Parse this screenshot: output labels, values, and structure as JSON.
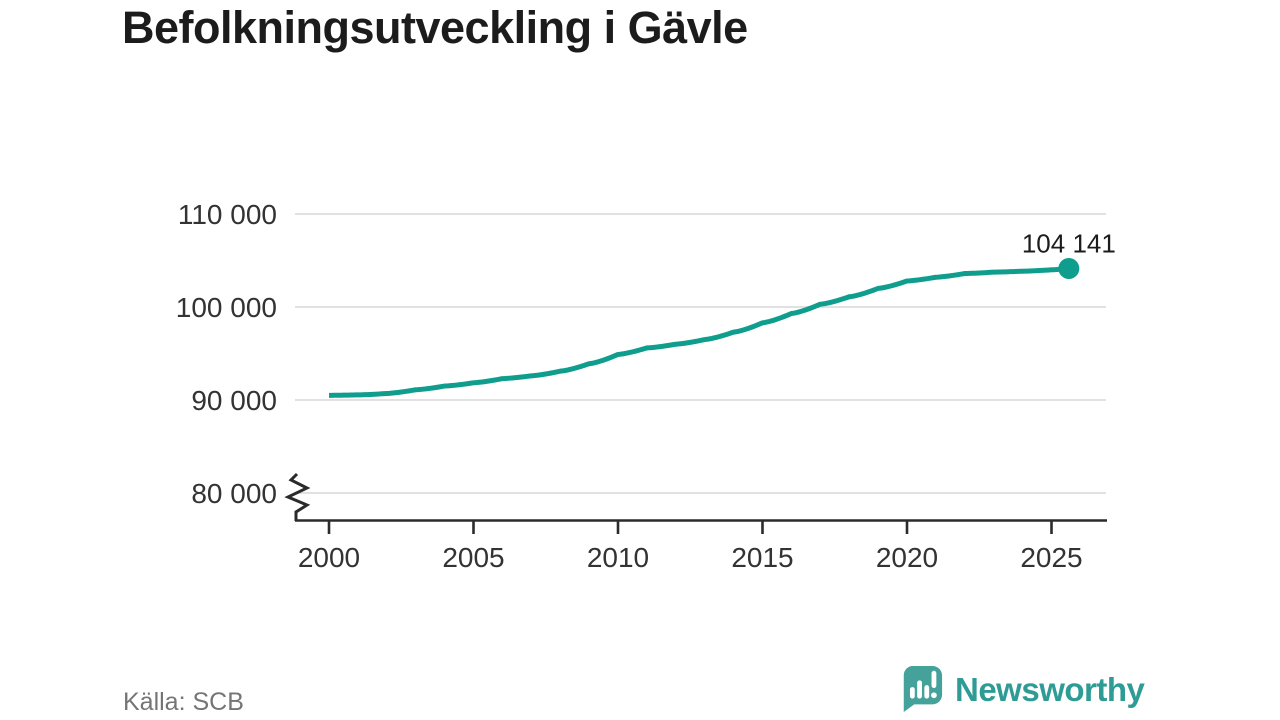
{
  "title": "Befolkningsutveckling i Gävle",
  "footer": {
    "source": "Källa: SCB",
    "brand_name": "Newsworthy"
  },
  "colors": {
    "line": "#0f9e8d",
    "grid": "#e1e1e1",
    "axis": "#2b2b2b",
    "tick_text": "#333333",
    "title_text": "#1c1c1c",
    "source_text": "#757575",
    "brand_teal": "#2e9c94",
    "logo_bubble": "#45a29b",
    "background": "#ffffff"
  },
  "chart_data": {
    "type": "line",
    "title": "Befolkningsutveckling i Gävle",
    "xlabel": "",
    "ylabel": "",
    "x_range": [
      2000,
      2025.6
    ],
    "ylim": [
      80000,
      110000
    ],
    "axis_break_at_bottom": true,
    "grid": "horizontal",
    "legend_position": "none",
    "series": [
      {
        "name": "Befolkning i Gävle",
        "points": [
          [
            2000.0,
            90500
          ],
          [
            2001,
            90550
          ],
          [
            2002,
            90700
          ],
          [
            2003,
            91100
          ],
          [
            2004,
            91500
          ],
          [
            2005,
            91850
          ],
          [
            2006,
            92300
          ],
          [
            2007,
            92600
          ],
          [
            2008,
            93100
          ],
          [
            2009,
            93900
          ],
          [
            2010,
            94900
          ],
          [
            2011,
            95600
          ],
          [
            2012,
            96000
          ],
          [
            2013,
            96500
          ],
          [
            2014,
            97300
          ],
          [
            2015,
            98300
          ],
          [
            2016,
            99300
          ],
          [
            2017,
            100300
          ],
          [
            2018,
            101100
          ],
          [
            2019,
            102000
          ],
          [
            2020,
            102800
          ],
          [
            2021,
            103200
          ],
          [
            2022,
            103600
          ],
          [
            2023,
            103750
          ],
          [
            2024,
            103850
          ],
          [
            2025,
            104000
          ],
          [
            2025.6,
            104141
          ]
        ]
      }
    ],
    "end_point": {
      "x": 2025.6,
      "value": 104141,
      "label": "104 141"
    },
    "xticks": [
      2000,
      2005,
      2010,
      2015,
      2020,
      2025
    ],
    "yticks": [
      {
        "value": 80000,
        "label": "80 000"
      },
      {
        "value": 90000,
        "label": "90 000"
      },
      {
        "value": 100000,
        "label": "100 000"
      },
      {
        "value": 110000,
        "label": "110 000"
      }
    ]
  }
}
